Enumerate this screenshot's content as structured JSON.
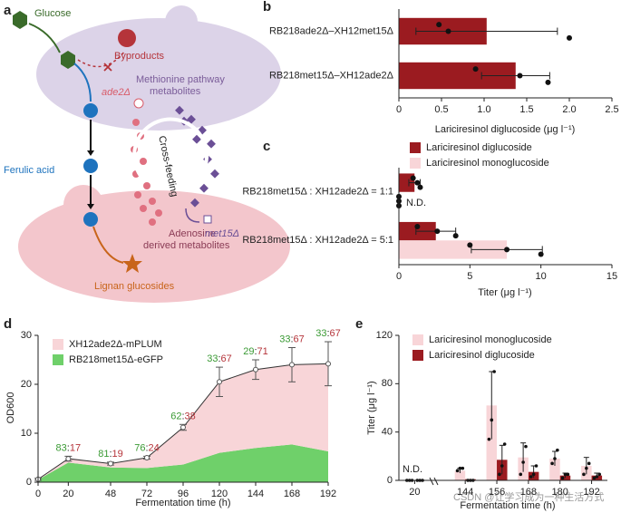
{
  "panel_labels": [
    "a",
    "b",
    "c",
    "d",
    "e"
  ],
  "diagram": {
    "glucose": "Glucose",
    "byproducts": "Byproducts",
    "methionine": [
      "Methionine pathway",
      "metabolites"
    ],
    "ade2": "ade2Δ",
    "cross_feeding": "Cross-feeding",
    "ferulic_acid": "Ferulic acid",
    "adenosine": [
      "Adenosine",
      "derived metabolites"
    ],
    "met15": "met15Δ",
    "lignan": "Lignan glucosides"
  },
  "watermark": "CSDN @让学习成为一种生活方式",
  "chart_data": [
    {
      "type": "bar",
      "orientation": "horizontal",
      "categories": [
        "RB218ade2Δ–XH12met15Δ",
        "RB218met15Δ–XH12ade2Δ"
      ],
      "values": [
        1.03,
        1.37
      ],
      "errors": [
        0.83,
        0.4
      ],
      "points": [
        [
          0.47,
          0.58,
          2.0
        ],
        [
          0.9,
          1.42,
          1.75
        ]
      ],
      "color": "#9b1b20",
      "x_label": "Lariciresinol diglucoside (μg l⁻¹)",
      "xlim": [
        0,
        2.5
      ],
      "xticks": [
        0,
        0.5,
        {
          "value": 1,
          "label": "1.0"
        },
        1.5,
        {
          "value": 2,
          "label": "2.0"
        },
        2.5
      ]
    },
    {
      "type": "bar",
      "orientation": "horizontal",
      "categories": [
        "RB218met15Δ : XH12ade2Δ = 1:1",
        "RB218met15Δ : XH12ade2Δ = 5:1"
      ],
      "series": [
        {
          "name": "Lariciresinol diglucoside",
          "color": "#9b1b20",
          "values": [
            1.1,
            2.6
          ],
          "errors": [
            0.4,
            1.4
          ],
          "points": [
            [
              1.0,
              1.3,
              1.5
            ],
            [
              1.3,
              2.7,
              4.0
            ]
          ]
        },
        {
          "name": "Lariciresinol monoglucoside",
          "color": "#f8d5d8",
          "values": [
            0,
            7.6
          ],
          "errors": [
            0,
            2.5
          ],
          "points": [
            [
              0,
              0,
              0
            ],
            [
              5,
              7.6,
              10
            ]
          ]
        }
      ],
      "annotations": [
        "N.D."
      ],
      "x_label": "Titer (μg l⁻¹)",
      "xlim": [
        0,
        15
      ],
      "xticks": [
        0,
        5,
        10,
        15
      ]
    },
    {
      "type": "area",
      "x": [
        0,
        20,
        48,
        72,
        96,
        120,
        144,
        168,
        192
      ],
      "series": [
        {
          "name": "XH12ade2Δ-mPLUM",
          "color": "#f8d5d8",
          "values": [
            0.1,
            0.8,
            0.8,
            2.1,
            7.6,
            14.5,
            16,
            16.3,
            17.9
          ]
        },
        {
          "name": "RB218met15Δ-eGFP",
          "color": "#6fd06a",
          "values": [
            0.5,
            4,
            3,
            2.9,
            3.6,
            6,
            7,
            7.7,
            6.3
          ]
        }
      ],
      "errors": [
        0.2,
        0.5,
        0.3,
        0.3,
        0.6,
        3,
        2,
        3.5,
        4.5
      ],
      "ratio_labels": [
        null,
        [
          "83",
          "17"
        ],
        [
          "81",
          "19"
        ],
        [
          "76",
          "24"
        ],
        [
          "62",
          "38"
        ],
        [
          "33",
          "67"
        ],
        [
          "29",
          "71"
        ],
        [
          "33",
          "67"
        ],
        [
          "33",
          "67"
        ]
      ],
      "ratio_separator": ":",
      "x_label": "Fermentation time (h)",
      "y_label": "OD600",
      "xlim": [
        0,
        192
      ],
      "xticks": [
        0,
        20,
        48,
        72,
        96,
        120,
        144,
        168,
        192
      ],
      "ylim": [
        0,
        30
      ],
      "yticks": [
        0,
        10,
        20,
        30
      ]
    },
    {
      "type": "bar",
      "orientation": "vertical",
      "categories": [
        "20",
        "144",
        "156",
        "168",
        "180",
        "192"
      ],
      "series": [
        {
          "name": "Lariciresinol monoglucoside",
          "color": "#f8d5d8",
          "values": [
            0,
            8,
            62,
            19,
            18,
            12
          ],
          "errors": [
            0,
            2,
            28,
            12,
            6,
            7
          ],
          "points": [
            [
              0,
              0,
              0
            ],
            [
              8,
              10,
              10
            ],
            [
              34,
              50,
              90
            ],
            [
              5,
              15,
              28
            ],
            [
              14,
              18,
              25
            ],
            [
              5,
              10,
              14
            ]
          ]
        },
        {
          "name": "Lariciresinol diglucoside",
          "color": "#9b1b20",
          "values": [
            0,
            1,
            17,
            7,
            4,
            4
          ],
          "errors": [
            0,
            0,
            12,
            5,
            2,
            2
          ],
          "points": [
            [
              0,
              0,
              0
            ],
            [
              0,
              0,
              0
            ],
            [
              5,
              12,
              30
            ],
            [
              3,
              5,
              12
            ],
            [
              2,
              5,
              5
            ],
            [
              2,
              3,
              5
            ]
          ]
        }
      ],
      "annotations": [
        "N.D."
      ],
      "x_label": "Fermentation time (h)",
      "y_label": "Titer (μg l⁻¹)",
      "ylim": [
        0,
        120
      ],
      "yticks": [
        0,
        40,
        80,
        120
      ]
    }
  ]
}
